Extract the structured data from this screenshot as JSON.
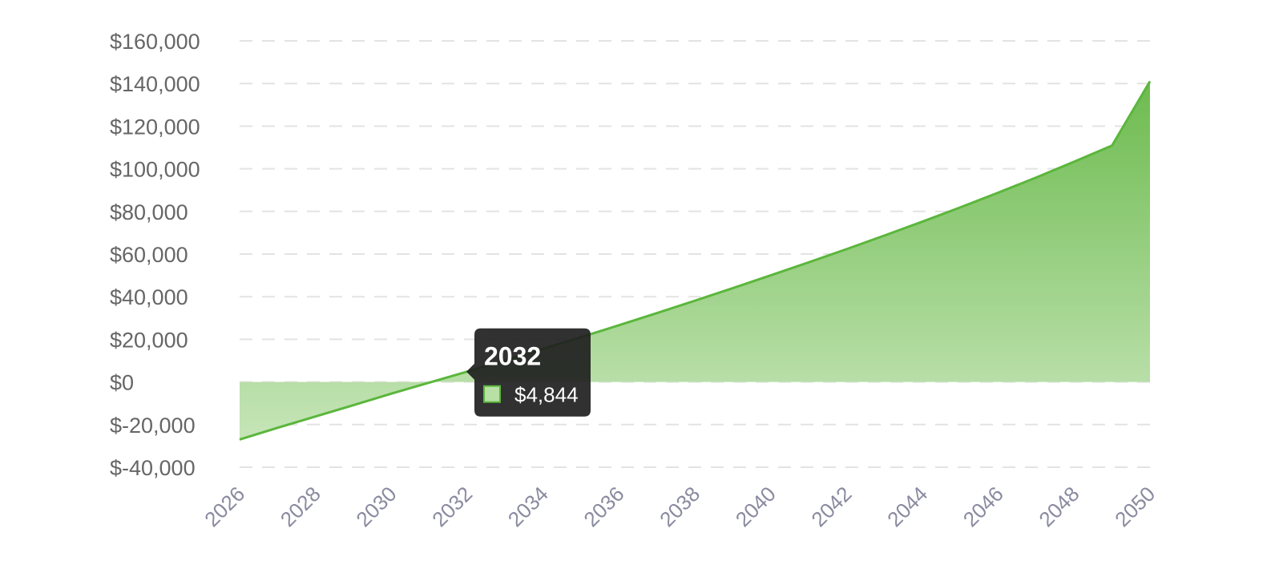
{
  "chart_data": {
    "type": "area",
    "title": "",
    "xlabel": "",
    "ylabel": "",
    "x": [
      2026,
      2027,
      2028,
      2029,
      2030,
      2031,
      2032,
      2033,
      2034,
      2035,
      2036,
      2037,
      2038,
      2039,
      2040,
      2041,
      2042,
      2043,
      2044,
      2045,
      2046,
      2047,
      2048,
      2049,
      2050
    ],
    "x_tick_labels": [
      "2026",
      "2028",
      "2030",
      "2032",
      "2034",
      "2036",
      "2038",
      "2040",
      "2042",
      "2044",
      "2046",
      "2048",
      "2050"
    ],
    "y_tick_labels": [
      "$160,000",
      "$140,000",
      "$120,000",
      "$100,000",
      "$80,000",
      "$60,000",
      "$40,000",
      "$20,000",
      "$0",
      "$-20,000",
      "$-40,000"
    ],
    "y_ticks": [
      160000,
      140000,
      120000,
      100000,
      80000,
      60000,
      40000,
      20000,
      0,
      -20000,
      -40000
    ],
    "ylim": [
      -40000,
      160000
    ],
    "xlim": [
      2026,
      2050
    ],
    "grid": true,
    "legend": "none",
    "series": [
      {
        "values": [
          -27000,
          -21500,
          -16200,
          -10900,
          -5500,
          -300,
          4844,
          10100,
          15500,
          21000,
          26600,
          32300,
          38100,
          44000,
          50000,
          56100,
          62300,
          68700,
          75200,
          81900,
          88800,
          95900,
          103300,
          110900,
          141000
        ]
      }
    ],
    "colors": {
      "line": "#5bb63c",
      "fill_top": "#6dbb4f",
      "fill_bottom": "#c6e5b8",
      "tooltip_bg": "#1f1f1f",
      "tooltip_swatch": "#b8e0a5"
    },
    "tooltip": {
      "title": "2032",
      "value": "$4,844",
      "x": 2032
    }
  }
}
